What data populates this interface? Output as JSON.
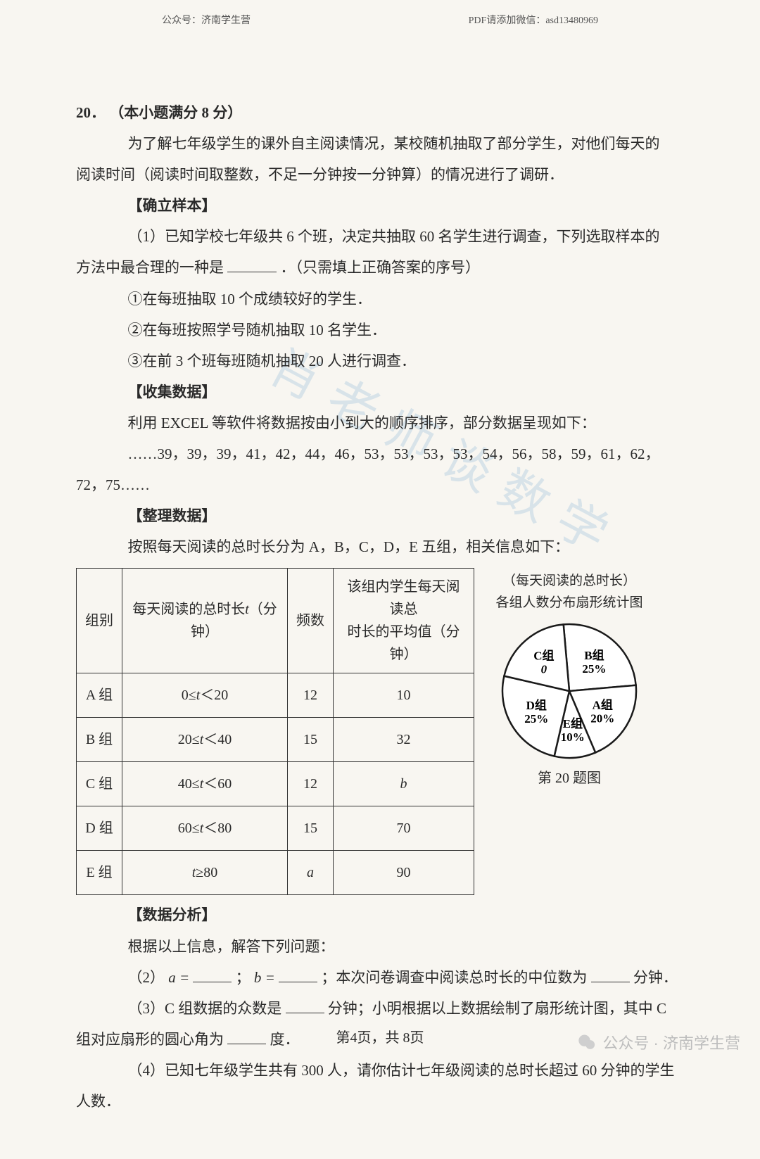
{
  "header": {
    "left": "公众号：济南学生营",
    "right": "PDF请添加微信：asd13480969"
  },
  "question": {
    "number": "20．",
    "points": "（本小题满分 8 分）",
    "intro1": "为了解七年级学生的课外自主阅读情况，某校随机抽取了部分学生，对他们每天的",
    "intro2": "阅读时间（阅读时间取整数，不足一分钟按一分钟算）的情况进行了调研．",
    "s1_title": "【确立样本】",
    "s1_q_a": "（1）已知学校七年级共 6 个班，决定共抽取 60 名学生进行调查，下列选取样本的",
    "s1_q_b": "方法中最合理的一种是",
    "s1_q_c": "．（只需填上正确答案的序号）",
    "opt1": "①在每班抽取 10 个成绩较好的学生．",
    "opt2": "②在每班按照学号随机抽取 10 名学生．",
    "opt3": "③在前 3 个班每班随机抽取 20 人进行调查．",
    "s2_title": "【收集数据】",
    "s2_line": "利用 EXCEL 等软件将数据按由小到大的顺序排序，部分数据呈现如下：",
    "data_a": "……39，39，39，41，42，44，46，53，53，53，53，54，56，58，59，61，62，",
    "data_b": "72，75……",
    "s3_title": "【整理数据】",
    "s3_line": "按照每天阅读的总时长分为 A，B，C，D，E 五组，相关信息如下：",
    "s4_title": "【数据分析】",
    "s4_line": "根据以上信息，解答下列问题：",
    "q2_a": "（2）",
    "q2_b": "；",
    "q2_c": "；本次问卷调查中阅读总时长的中位数为",
    "q2_d": "分钟．",
    "q3_a": "（3）C 组数据的众数是",
    "q3_b": "分钟；小明根据以上数据绘制了扇形统计图，其中 C",
    "q3_c": "组对应扇形的圆心角为",
    "q3_d": "度．",
    "q4_a": "（4）已知七年级学生共有 300 人，请你估计七年级阅读的总时长超过 60 分钟的学生",
    "q4_b": "人数．",
    "a_eq": "a =",
    "b_eq": "b ="
  },
  "table": {
    "headers": {
      "c1": "组别",
      "c2_a": "每天阅读的总时长",
      "c2_b": "（分钟）",
      "c2_var": "t",
      "c3": "频数",
      "c4_a": "该组内学生每天阅读总",
      "c4_b": "时长的平均值（分钟）"
    },
    "rows": [
      {
        "g": "A 组",
        "range": "0≤t＜20",
        "f": "12",
        "m": "10"
      },
      {
        "g": "B 组",
        "range": "20≤t＜40",
        "f": "15",
        "m": "32"
      },
      {
        "g": "C 组",
        "range": "40≤t＜60",
        "f": "12",
        "m": "b"
      },
      {
        "g": "D 组",
        "range": "60≤t＜80",
        "f": "15",
        "m": "70"
      },
      {
        "g": "E 组",
        "range": "t≥80",
        "f": "a",
        "m": "90"
      }
    ]
  },
  "chart": {
    "type": "pie",
    "title1": "（每天阅读的总时长）",
    "title2": "各组人数分布扇形统计图",
    "caption": "第 20 题图",
    "slices": [
      {
        "label": "A组",
        "pct": "20%",
        "value": 20,
        "color": "#ffffff"
      },
      {
        "label": "B组",
        "pct": "25%",
        "value": 25,
        "color": "#ffffff"
      },
      {
        "label": "C组",
        "pct": "",
        "value": 20,
        "color": "#ffffff",
        "showQ": true
      },
      {
        "label": "D组",
        "pct": "25%",
        "value": 25,
        "color": "#ffffff"
      },
      {
        "label": "E组",
        "pct": "10%",
        "value": 10,
        "color": "#ffffff"
      }
    ],
    "stroke": "#1a1a1a",
    "stroke_width": 2.5,
    "radius": 95,
    "font_size": 17
  },
  "footer": "第4页，共 8页",
  "corner_wm": "公众号 · 济南学生营",
  "diag_wm": "肖老师谈数学"
}
